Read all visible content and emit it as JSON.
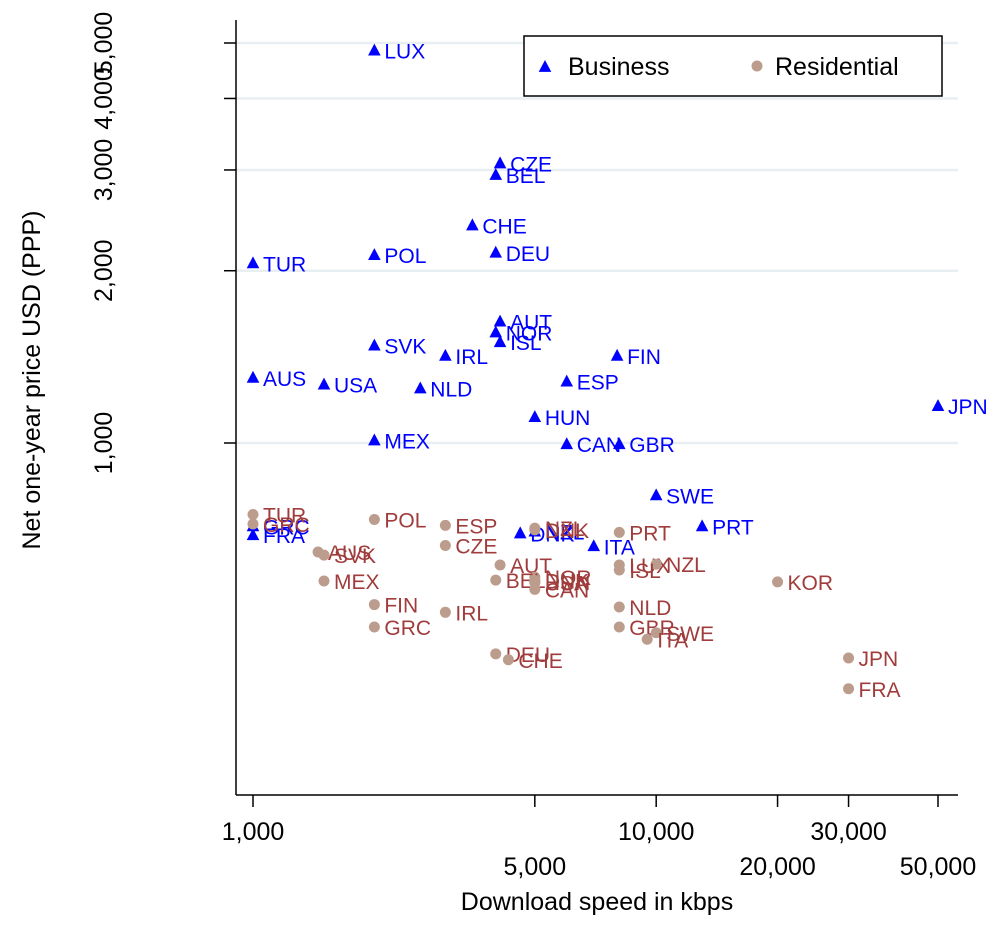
{
  "chart_data": {
    "type": "scatter",
    "x_scale": "log",
    "y_scale": "log",
    "xlabel": "Download speed in kbps",
    "ylabel": "Net one-year price USD (PPP)",
    "x_ticks": [
      {
        "value": 1000,
        "label": "1,000"
      },
      {
        "value": 5000,
        "label": "5,000"
      },
      {
        "value": 10000,
        "label": "10,000"
      },
      {
        "value": 20000,
        "label": "20,000"
      },
      {
        "value": 30000,
        "label": "30,000"
      },
      {
        "value": 50000,
        "label": "50,000"
      }
    ],
    "y_ticks": [
      {
        "value": 1000,
        "label": "1,000"
      },
      {
        "value": 2000,
        "label": "2,000"
      },
      {
        "value": 3000,
        "label": "3,000"
      },
      {
        "value": 4000,
        "label": "4,000"
      },
      {
        "value": 5000,
        "label": "5,000"
      }
    ],
    "xlim": [
      960,
      54000
    ],
    "ylim": [
      245,
      5600
    ],
    "grid": "horizontal",
    "legend_position": "top-right",
    "series": [
      {
        "name": "Business",
        "marker": "triangle",
        "color": "#0000ff",
        "label_color": "#0000ff",
        "points": [
          {
            "label": "LUX",
            "x": 2000,
            "y": 4850
          },
          {
            "label": "CZE",
            "x": 4100,
            "y": 3080
          },
          {
            "label": "BEL",
            "x": 4000,
            "y": 2940
          },
          {
            "label": "CHE",
            "x": 3500,
            "y": 2400
          },
          {
            "label": "POL",
            "x": 2000,
            "y": 2130
          },
          {
            "label": "DEU",
            "x": 4000,
            "y": 2150
          },
          {
            "label": "TUR",
            "x": 1000,
            "y": 2060
          },
          {
            "label": "AUT",
            "x": 4100,
            "y": 1630
          },
          {
            "label": "NOR",
            "x": 4000,
            "y": 1560
          },
          {
            "label": "ISL",
            "x": 4100,
            "y": 1500
          },
          {
            "label": "SVK",
            "x": 2000,
            "y": 1480
          },
          {
            "label": "IRL",
            "x": 3000,
            "y": 1420
          },
          {
            "label": "FIN",
            "x": 8000,
            "y": 1420
          },
          {
            "label": "AUS",
            "x": 1000,
            "y": 1300
          },
          {
            "label": "USA",
            "x": 1500,
            "y": 1265
          },
          {
            "label": "NLD",
            "x": 2600,
            "y": 1245
          },
          {
            "label": "ESP",
            "x": 6000,
            "y": 1280
          },
          {
            "label": "HUN",
            "x": 5000,
            "y": 1110
          },
          {
            "label": "JPN",
            "x": 50000,
            "y": 1160
          },
          {
            "label": "MEX",
            "x": 2000,
            "y": 1010
          },
          {
            "label": "CAN",
            "x": 6000,
            "y": 995
          },
          {
            "label": "GBR",
            "x": 8100,
            "y": 995
          },
          {
            "label": "SWE",
            "x": 10000,
            "y": 810
          },
          {
            "label": "PRT",
            "x": 13000,
            "y": 715
          },
          {
            "label": "GRC",
            "x": 1000,
            "y": 715
          },
          {
            "label": "FRA",
            "x": 1000,
            "y": 690
          },
          {
            "label": "DNK",
            "x": 4600,
            "y": 695
          },
          {
            "label": "NZL",
            "x": 5000,
            "y": 700
          },
          {
            "label": "ITA",
            "x": 7000,
            "y": 660
          }
        ]
      },
      {
        "name": "Residential",
        "marker": "circle",
        "color": "#bc9c8c",
        "label_color": "#a03c3c",
        "points": [
          {
            "label": "TUR",
            "x": 1000,
            "y": 750
          },
          {
            "label": "GRC",
            "x": 1000,
            "y": 722
          },
          {
            "label": "POL",
            "x": 2000,
            "y": 735
          },
          {
            "label": "ESP",
            "x": 3000,
            "y": 718
          },
          {
            "label": "NZL",
            "x": 5000,
            "y": 710
          },
          {
            "label": "DNK",
            "x": 5000,
            "y": 705
          },
          {
            "label": "PRT",
            "x": 8100,
            "y": 698
          },
          {
            "label": "CZE",
            "x": 3000,
            "y": 662
          },
          {
            "label": "AUS",
            "x": 1450,
            "y": 645
          },
          {
            "label": "SVK",
            "x": 1500,
            "y": 637
          },
          {
            "label": "AUT",
            "x": 4100,
            "y": 612
          },
          {
            "label": "LUX",
            "x": 8100,
            "y": 612
          },
          {
            "label": "NZL",
            "x": 10000,
            "y": 614
          },
          {
            "label": "ISL",
            "x": 8100,
            "y": 600
          },
          {
            "label": "NOR",
            "x": 5000,
            "y": 583
          },
          {
            "label": "USA",
            "x": 5000,
            "y": 570
          },
          {
            "label": "BEL",
            "x": 4000,
            "y": 576
          },
          {
            "label": "HUN",
            "x": 5000,
            "y": 572
          },
          {
            "label": "DNK",
            "x": 5000,
            "y": 575
          },
          {
            "label": "CAN",
            "x": 5000,
            "y": 555
          },
          {
            "label": "MEX",
            "x": 1500,
            "y": 574
          },
          {
            "label": "KOR",
            "x": 20000,
            "y": 572
          },
          {
            "label": "FIN",
            "x": 2000,
            "y": 522
          },
          {
            "label": "NLD",
            "x": 8100,
            "y": 517
          },
          {
            "label": "IRL",
            "x": 3000,
            "y": 506
          },
          {
            "label": "GBR",
            "x": 8100,
            "y": 477
          },
          {
            "label": "GRC",
            "x": 2000,
            "y": 477
          },
          {
            "label": "SWE",
            "x": 10000,
            "y": 466
          },
          {
            "label": "ITA",
            "x": 9500,
            "y": 454
          },
          {
            "label": "DEU",
            "x": 4000,
            "y": 428
          },
          {
            "label": "CHE",
            "x": 4300,
            "y": 418
          },
          {
            "label": "JPN",
            "x": 30000,
            "y": 421
          },
          {
            "label": "FRA",
            "x": 30000,
            "y": 372
          }
        ]
      }
    ]
  }
}
